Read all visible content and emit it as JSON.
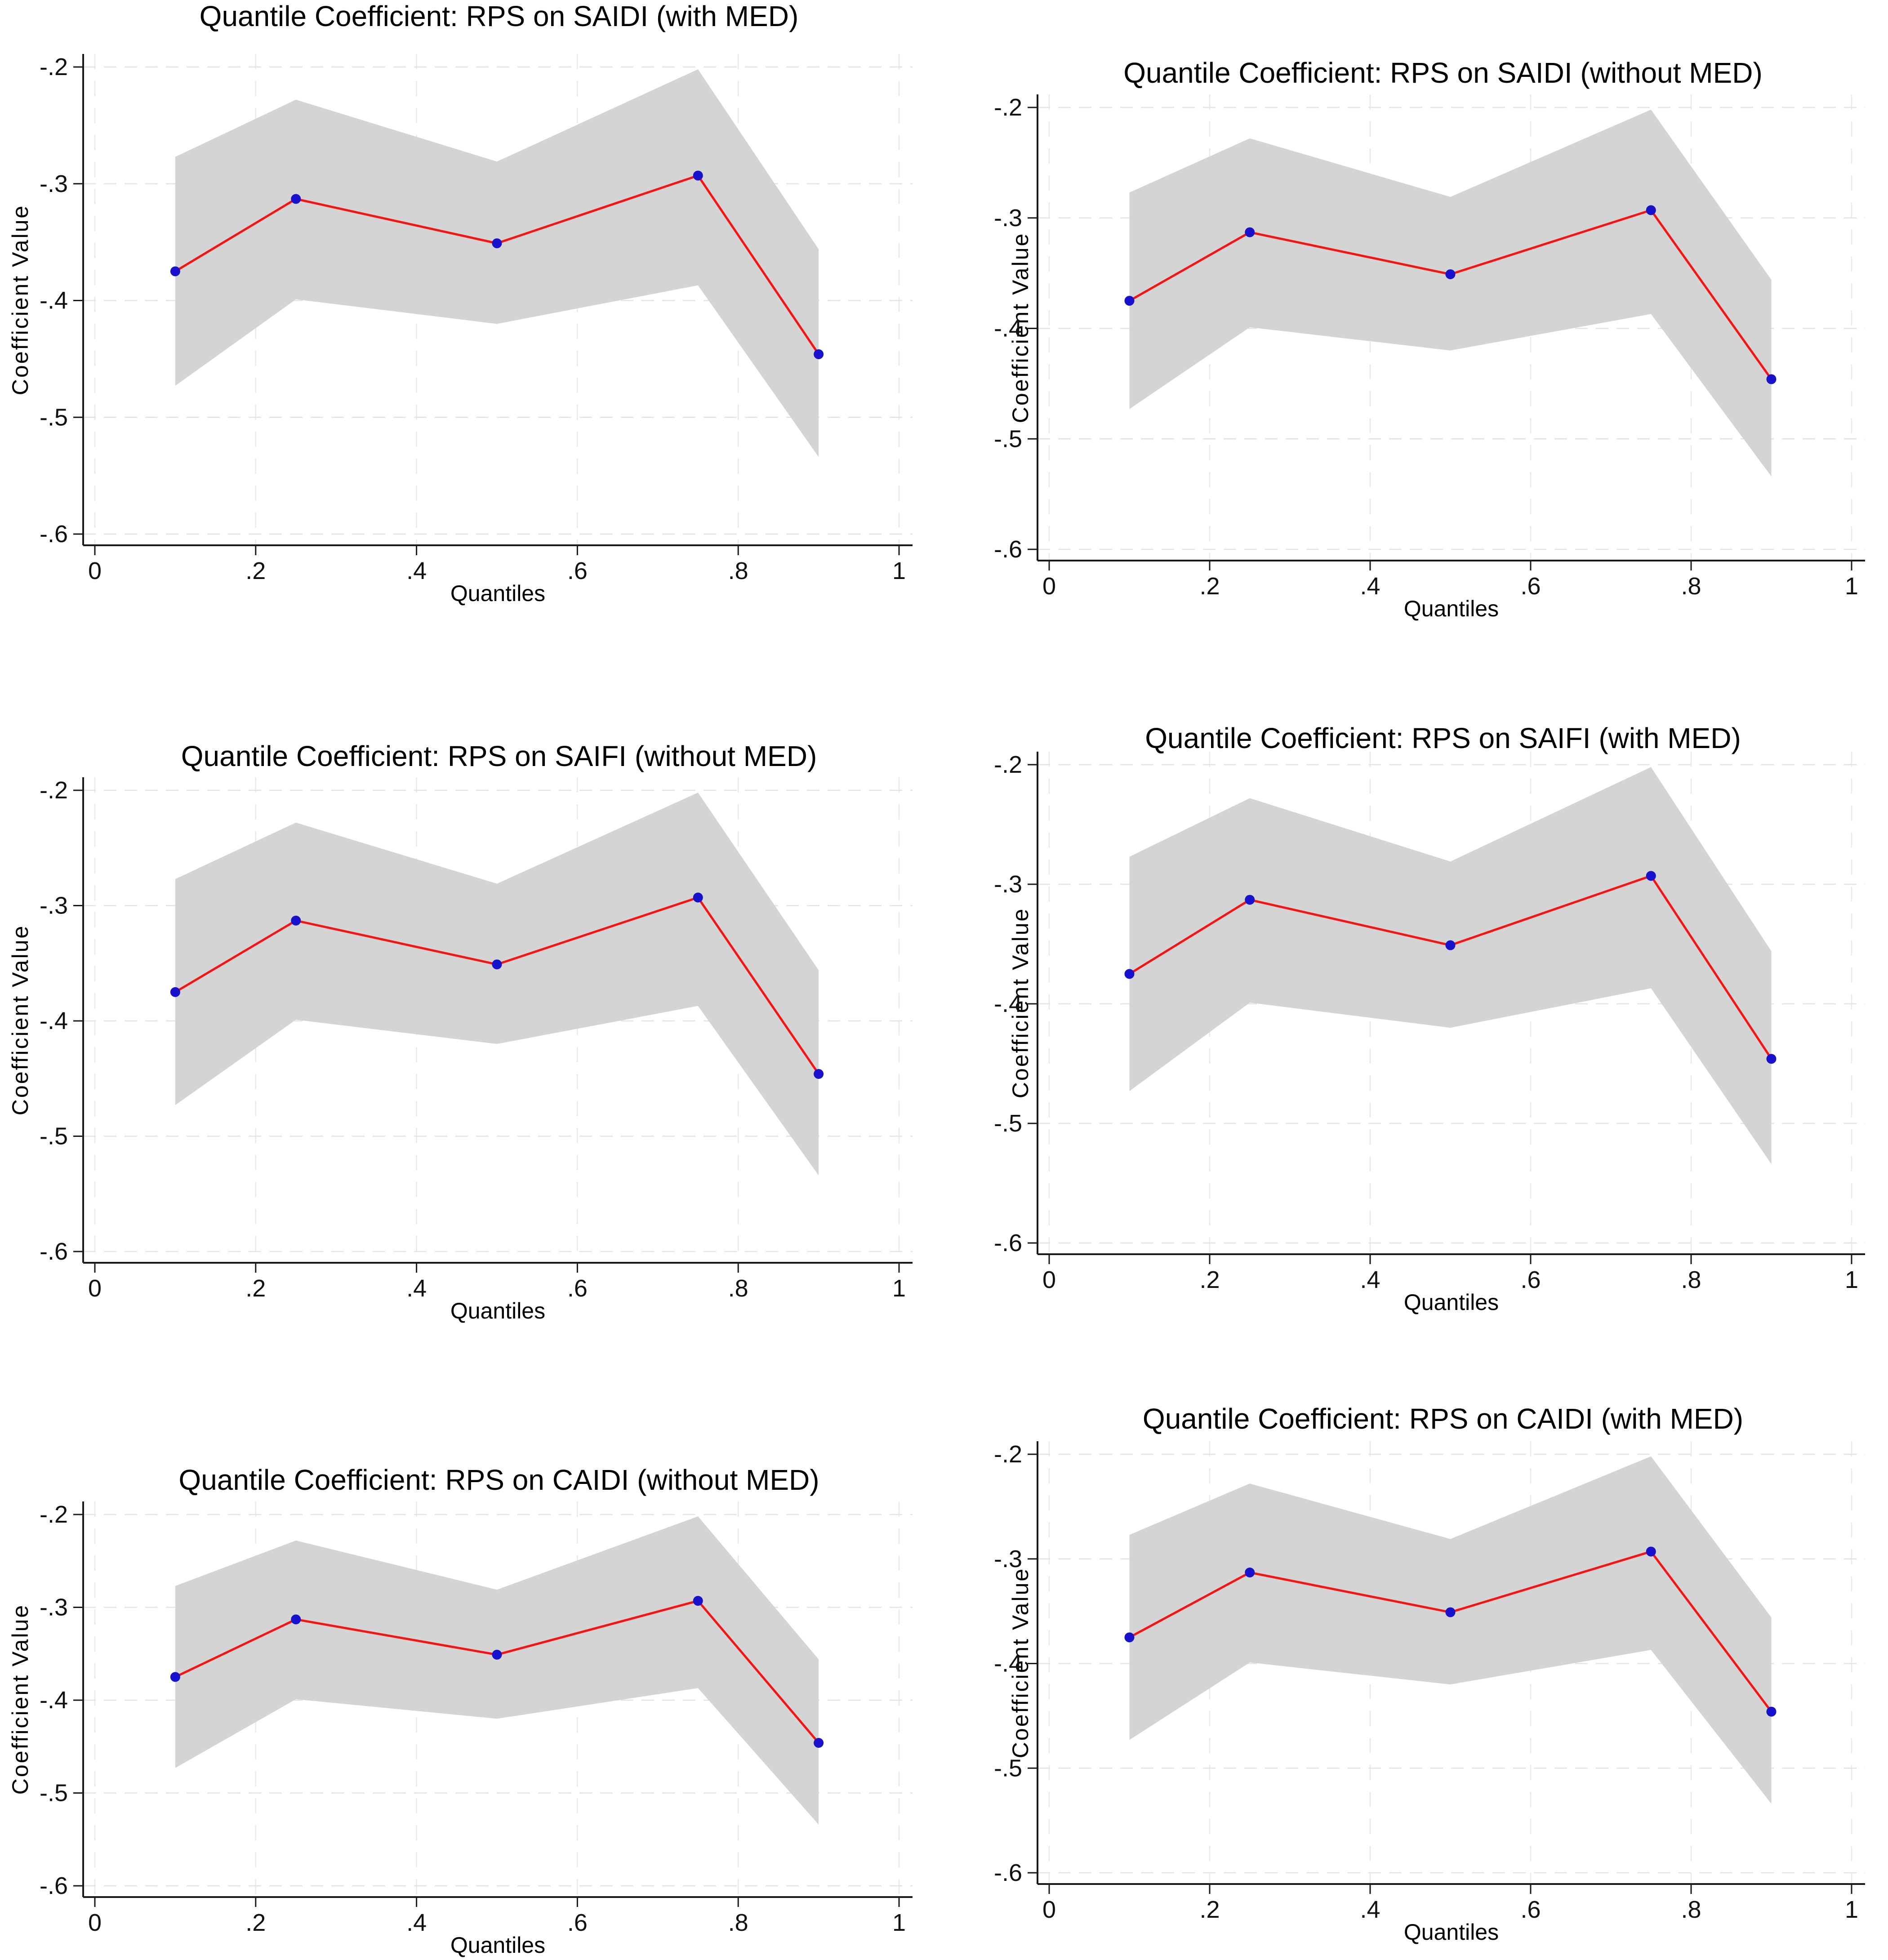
{
  "figure": {
    "background": "#ffffff",
    "grid": true,
    "legend": "none",
    "x_ticks": [
      "0",
      ".2",
      ".4",
      ".6",
      ".8",
      "1"
    ],
    "x_tick_values": [
      0,
      0.2,
      0.4,
      0.6,
      0.8,
      1
    ],
    "y_ticks": [
      "-.2",
      "-.3",
      "-.4",
      "-.5",
      "-.6"
    ],
    "y_tick_values": [
      -0.2,
      -0.3,
      -0.4,
      -0.5,
      -0.6
    ],
    "xlim": [
      -0.015,
      1.017
    ],
    "ylim": [
      -0.611,
      -0.188
    ],
    "colors": {
      "line": "#f51414",
      "marker": "#1812cc",
      "band": "#d4d4d4",
      "grid_h": "#e3e3e3",
      "grid_v": "#e9e9e9",
      "axis": "#1a1a1a",
      "text": "#111111"
    }
  },
  "chart_data": [
    {
      "type": "line",
      "title": "Quantile Coefficient: RPS on SAIDI (with MED)",
      "xlabel": "Quantiles",
      "ylabel": "Coefficient Value",
      "x": [
        0.1,
        0.25,
        0.5,
        0.75,
        0.9
      ],
      "coefficient": [
        -0.375,
        -0.313,
        -0.351,
        -0.293,
        -0.446
      ],
      "ci_upper": [
        -0.277,
        -0.228,
        -0.281,
        -0.202,
        -0.356
      ],
      "ci_lower": [
        -0.473,
        -0.399,
        -0.42,
        -0.387,
        -0.534
      ]
    },
    {
      "type": "line",
      "title": "Quantile Coefficient: RPS on SAIDI (without MED)",
      "xlabel": "Quantiles",
      "ylabel": "Coefficient Value",
      "x": [
        0.1,
        0.25,
        0.5,
        0.75,
        0.9
      ],
      "coefficient": [
        -0.375,
        -0.313,
        -0.351,
        -0.293,
        -0.446
      ],
      "ci_upper": [
        -0.277,
        -0.228,
        -0.281,
        -0.202,
        -0.356
      ],
      "ci_lower": [
        -0.473,
        -0.399,
        -0.42,
        -0.387,
        -0.534
      ]
    },
    {
      "type": "line",
      "title": "Quantile Coefficient: RPS on SAIFI (without MED)",
      "xlabel": "Quantiles",
      "ylabel": "Coefficient Value",
      "x": [
        0.1,
        0.25,
        0.5,
        0.75,
        0.9
      ],
      "coefficient": [
        -0.375,
        -0.313,
        -0.351,
        -0.293,
        -0.446
      ],
      "ci_upper": [
        -0.277,
        -0.228,
        -0.281,
        -0.202,
        -0.356
      ],
      "ci_lower": [
        -0.473,
        -0.399,
        -0.42,
        -0.387,
        -0.534
      ]
    },
    {
      "type": "line",
      "title": "Quantile Coefficient: RPS on SAIFI (with MED)",
      "xlabel": "Quantiles",
      "ylabel": "Coefficient Value",
      "x": [
        0.1,
        0.25,
        0.5,
        0.75,
        0.9
      ],
      "coefficient": [
        -0.375,
        -0.313,
        -0.351,
        -0.293,
        -0.446
      ],
      "ci_upper": [
        -0.277,
        -0.228,
        -0.281,
        -0.202,
        -0.356
      ],
      "ci_lower": [
        -0.473,
        -0.399,
        -0.42,
        -0.387,
        -0.534
      ]
    },
    {
      "type": "line",
      "title": "Quantile Coefficient: RPS on CAIDI (without MED)",
      "xlabel": "Quantiles",
      "ylabel": "Coefficient Value",
      "x": [
        0.1,
        0.25,
        0.5,
        0.75,
        0.9
      ],
      "coefficient": [
        -0.375,
        -0.313,
        -0.351,
        -0.293,
        -0.446
      ],
      "ci_upper": [
        -0.277,
        -0.228,
        -0.281,
        -0.202,
        -0.356
      ],
      "ci_lower": [
        -0.473,
        -0.399,
        -0.42,
        -0.387,
        -0.534
      ]
    },
    {
      "type": "line",
      "title": "Quantile Coefficient: RPS on CAIDI (with MED)",
      "xlabel": "Quantiles",
      "ylabel": "Coefficient Value",
      "x": [
        0.1,
        0.25,
        0.5,
        0.75,
        0.9
      ],
      "coefficient": [
        -0.375,
        -0.313,
        -0.351,
        -0.293,
        -0.446
      ],
      "ci_upper": [
        -0.277,
        -0.228,
        -0.281,
        -0.202,
        -0.356
      ],
      "ci_lower": [
        -0.473,
        -0.399,
        -0.42,
        -0.387,
        -0.534
      ]
    }
  ]
}
